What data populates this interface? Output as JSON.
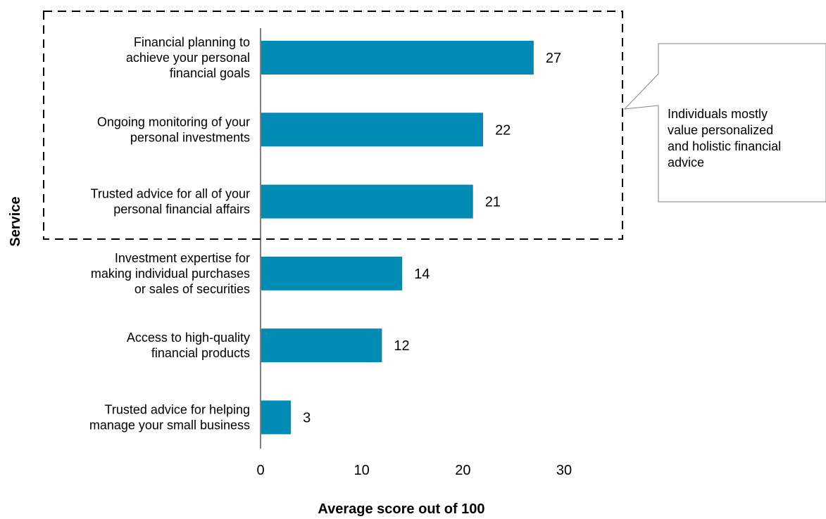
{
  "chart_data": {
    "type": "bar",
    "orientation": "horizontal",
    "categories": [
      [
        "Financial planning to",
        "achieve your personal",
        "financial goals"
      ],
      [
        "Ongoing monitoring of your",
        "personal investments"
      ],
      [
        "Trusted advice for all of your",
        "personal financial affairs"
      ],
      [
        "Investment expertise for",
        "making individual purchases",
        "or sales of securities"
      ],
      [
        "Access to high-quality",
        "financial products"
      ],
      [
        "Trusted advice for helping",
        "manage your small business"
      ]
    ],
    "values": [
      27,
      22,
      21,
      14,
      12,
      3
    ],
    "data_labels": [
      "27",
      "22",
      "21",
      "14",
      "12",
      "3"
    ],
    "xlabel": "Average score out of 100",
    "ylabel": "Service",
    "xlim": [
      0,
      30
    ],
    "xticks": [
      0,
      10,
      20,
      30
    ],
    "xtick_labels": [
      "0",
      "10",
      "20",
      "30"
    ],
    "grid": false,
    "bar_color": "#008bb4",
    "highlight": {
      "categories_highlighted": 3,
      "style": "dashed box"
    },
    "annotation": {
      "lines": [
        "Individuals mostly",
        "value personalized",
        "and holistic financial",
        "advice"
      ]
    }
  }
}
